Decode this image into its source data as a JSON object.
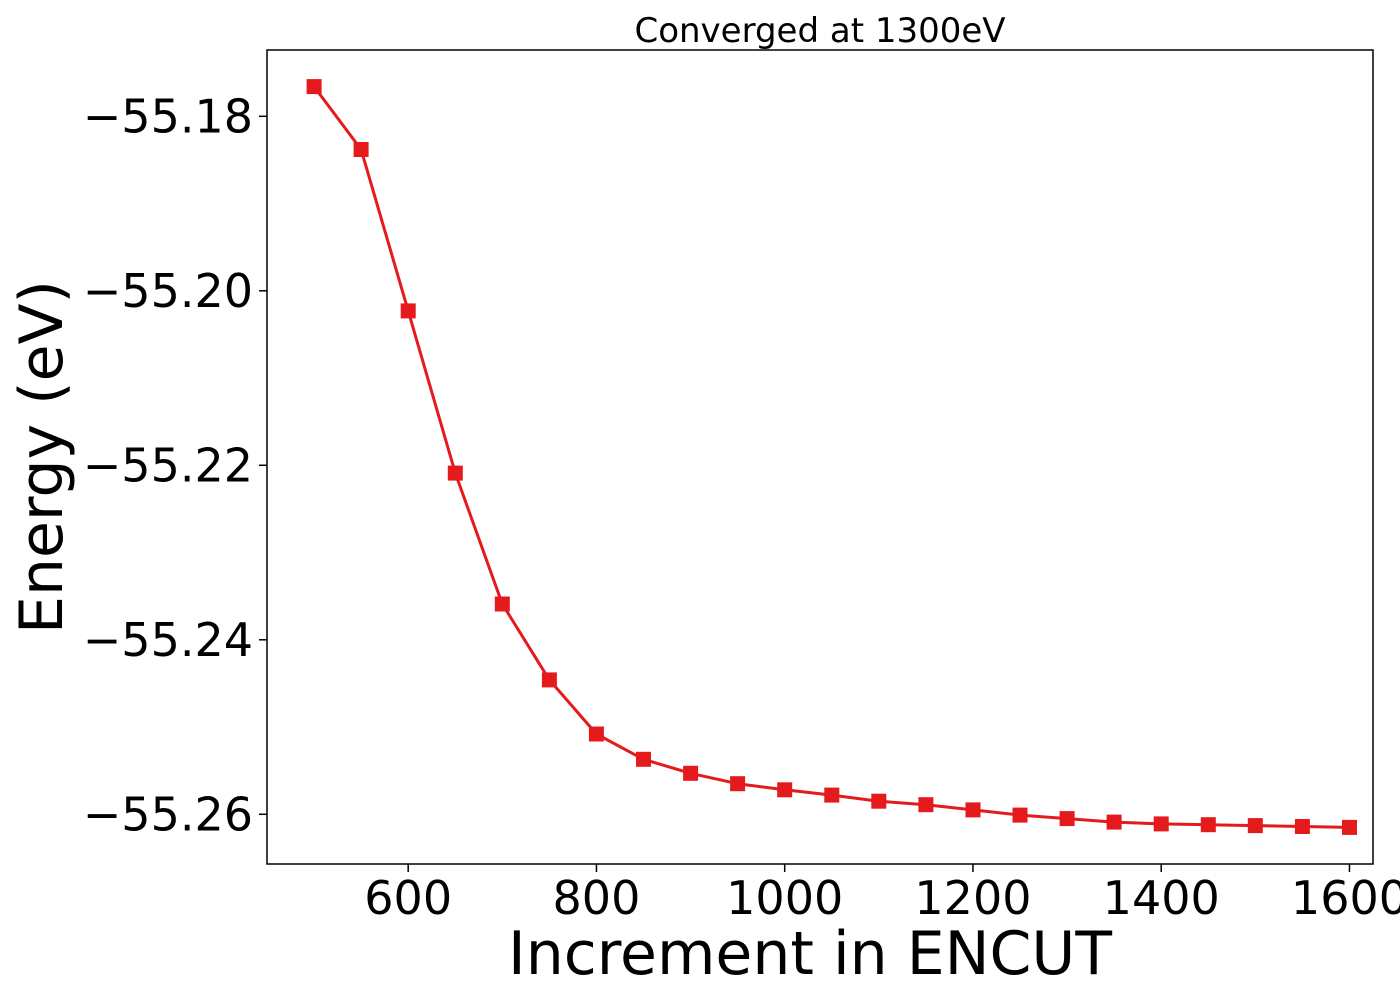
{
  "chart_data": {
    "type": "line",
    "title": "Converged at 1300eV",
    "xlabel": "Increment in ENCUT",
    "ylabel": "Energy (eV)",
    "xlim": [
      450,
      1625
    ],
    "ylim": [
      -55.2657,
      -55.1724
    ],
    "xticks": [
      600,
      800,
      1000,
      1200,
      1400,
      1600
    ],
    "yticks": [
      -55.18,
      -55.2,
      -55.22,
      -55.24,
      -55.26
    ],
    "ytick_labels": [
      "−55.18",
      "−55.20",
      "−55.22",
      "−55.24",
      "−55.26"
    ],
    "grid": false,
    "marker": "square",
    "color": "#e41a1c",
    "x": [
      500,
      550,
      600,
      650,
      700,
      750,
      800,
      850,
      900,
      950,
      1000,
      1050,
      1100,
      1150,
      1200,
      1250,
      1300,
      1350,
      1400,
      1450,
      1500,
      1550,
      1600
    ],
    "y": [
      -55.1766,
      -55.1838,
      -55.2023,
      -55.2209,
      -55.2359,
      -55.2446,
      -55.2508,
      -55.2537,
      -55.2553,
      -55.2565,
      -55.2572,
      -55.2578,
      -55.2585,
      -55.2589,
      -55.2595,
      -55.2601,
      -55.2605,
      -55.2609,
      -55.2611,
      -55.2612,
      -55.2613,
      -55.2614,
      -55.2615
    ]
  }
}
